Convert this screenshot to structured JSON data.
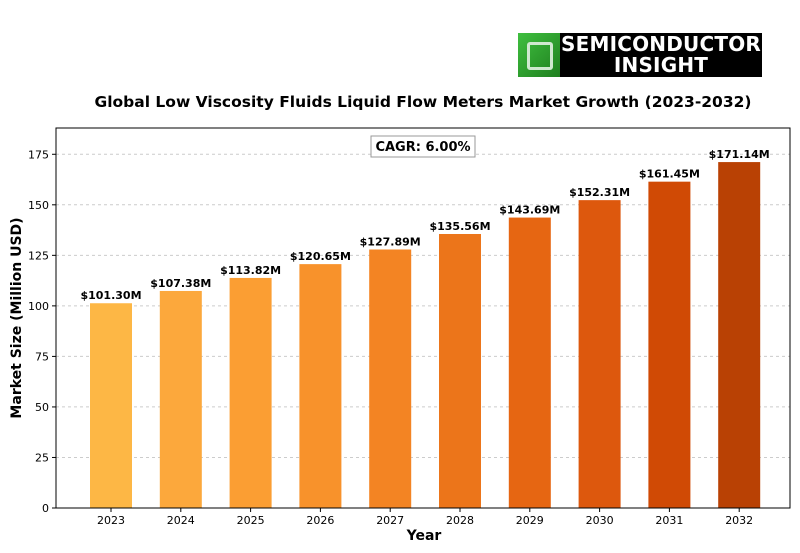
{
  "logo": {
    "line1": "SEMICONDUCTOR",
    "line2": "INSIGHT"
  },
  "chart_data": {
    "type": "bar",
    "title": "Global Low Viscosity Fluids Liquid Flow Meters Market Growth (2023-2032)",
    "xlabel": "Year",
    "ylabel": "Market Size (Million USD)",
    "annotation": "CAGR: 6.00%",
    "categories": [
      "2023",
      "2024",
      "2025",
      "2026",
      "2027",
      "2028",
      "2029",
      "2030",
      "2031",
      "2032"
    ],
    "values": [
      101.3,
      107.38,
      113.82,
      120.65,
      127.89,
      135.56,
      143.69,
      152.31,
      161.45,
      171.14
    ],
    "data_labels": [
      "$101.30M",
      "$107.38M",
      "$113.82M",
      "$120.65M",
      "$127.89M",
      "$135.56M",
      "$143.69M",
      "$152.31M",
      "$161.45M",
      "$171.14M"
    ],
    "colors": [
      "#fdb745",
      "#fca83c",
      "#fb9e33",
      "#f8922b",
      "#f38423",
      "#ec751a",
      "#e66612",
      "#dd580d",
      "#d04a05",
      "#b94104"
    ],
    "ylim": [
      0,
      188
    ],
    "yticks": [
      0,
      25,
      50,
      75,
      100,
      125,
      150,
      175
    ],
    "grid": true
  }
}
